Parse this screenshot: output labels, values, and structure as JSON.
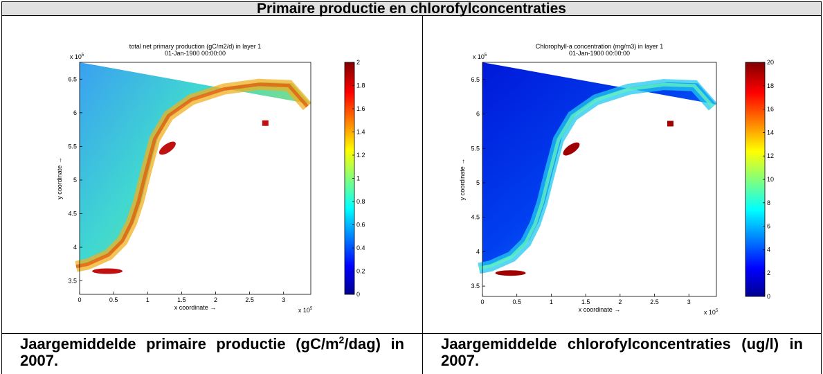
{
  "title": "Primaire productie en chlorofylconcentraties",
  "panels": [
    {
      "plot": {
        "title": [
          "total net primary production (gC/m2/d) in layer 1",
          "01-Jan-1900 00:00:00"
        ],
        "xlabel": "x coordinate →",
        "ylabel": "y coordinate →",
        "multiplier": {
          "base": "x 10",
          "exponent": "5"
        },
        "xlim": [
          0,
          3.4
        ],
        "ylim": [
          3.3,
          6.75
        ],
        "xticks": [
          0,
          0.5,
          1,
          1.5,
          2,
          2.5,
          3
        ],
        "yticks": [
          3.5,
          4,
          4.5,
          5,
          5.5,
          6,
          6.5
        ],
        "colorbar": {
          "lim": [
            0,
            2
          ],
          "ticks": [
            0,
            0.2,
            0.4,
            0.6,
            0.8,
            1,
            1.2,
            1.4,
            1.6,
            1.8,
            2
          ]
        }
      },
      "caption": {
        "text": "Jaargemiddelde primaire productie (gC/m",
        "sup": "2",
        "rest": "/dag) in 2007."
      }
    },
    {
      "plot": {
        "title": [
          "Chlorophyll-a concentration (mg/m3) in layer 1",
          "01-Jan-1900 00:00:00"
        ],
        "xlabel": "x coordinate →",
        "ylabel": "y coordinate →",
        "multiplier": {
          "base": "x 10",
          "exponent": "5"
        },
        "xlim": [
          0,
          3.4
        ],
        "ylim": [
          3.35,
          6.75
        ],
        "xticks": [
          0,
          0.5,
          1,
          1.5,
          2,
          2.5,
          3
        ],
        "yticks": [
          3.5,
          4,
          4.5,
          5,
          5.5,
          6,
          6.5
        ],
        "colorbar": {
          "lim": [
            0,
            20
          ],
          "ticks": [
            0,
            2,
            4,
            6,
            8,
            10,
            12,
            14,
            16,
            18,
            20
          ]
        }
      },
      "caption": {
        "text": "Jaargemiddelde chlorofylconcentraties (ug/l) in 2007."
      }
    }
  ]
}
